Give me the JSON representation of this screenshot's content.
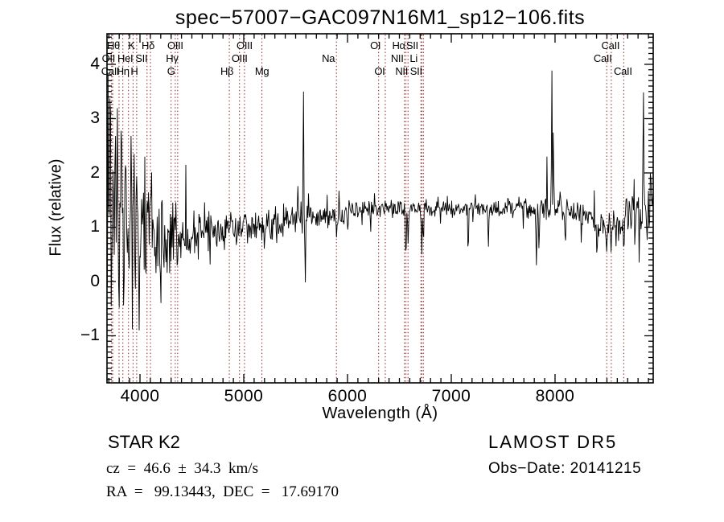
{
  "chart_data": {
    "type": "line",
    "title": "spec−57007−GAC097N16M1_sp12−106.fits",
    "xlabel": "Wavelength (Å)",
    "ylabel": "Flux (relative)",
    "x_range": [
      3682,
      8946
    ],
    "y_range": [
      -1.867,
      4.563
    ],
    "x_major_ticks": [
      4000,
      5000,
      6000,
      7000,
      8000
    ],
    "x_tick_labels": [
      "4000",
      "5000",
      "6000",
      "7000",
      "8000"
    ],
    "x_minor_step": 100,
    "y_major_ticks": [
      4,
      3,
      2,
      1,
      0,
      -1
    ],
    "y_tick_labels": [
      "4",
      "3",
      "2",
      "1",
      "0",
      "−1"
    ],
    "y_minor_step": 0.1,
    "grid": false,
    "legend": "none",
    "axis_color": "#000000",
    "spectrum_color": "#000000",
    "line_marker_color": "#8b2323",
    "sample_step": 6,
    "noise_seed": 57007,
    "continuum": [
      [
        3682,
        1.1
      ],
      [
        3800,
        1.0
      ],
      [
        3950,
        0.9
      ],
      [
        4100,
        0.8
      ],
      [
        4300,
        0.82
      ],
      [
        4500,
        0.9
      ],
      [
        4700,
        0.95
      ],
      [
        4861,
        0.97
      ],
      [
        5000,
        1.02
      ],
      [
        5200,
        1.05
      ],
      [
        5450,
        1.15
      ],
      [
        5700,
        1.2
      ],
      [
        5950,
        1.25
      ],
      [
        6200,
        1.33
      ],
      [
        6450,
        1.35
      ],
      [
        6563,
        1.32
      ],
      [
        6800,
        1.33
      ],
      [
        7100,
        1.36
      ],
      [
        7400,
        1.33
      ],
      [
        7700,
        1.36
      ],
      [
        8000,
        1.34
      ],
      [
        8250,
        1.22
      ],
      [
        8480,
        1.05
      ],
      [
        8600,
        1.1
      ],
      [
        8750,
        1.25
      ],
      [
        8946,
        1.4
      ]
    ],
    "noise_amp": [
      [
        3682,
        1.85
      ],
      [
        3800,
        1.5
      ],
      [
        3950,
        1.2
      ],
      [
        4100,
        1.0
      ],
      [
        4300,
        0.75
      ],
      [
        4500,
        0.55
      ],
      [
        4750,
        0.45
      ],
      [
        5000,
        0.4
      ],
      [
        5300,
        0.35
      ],
      [
        5600,
        0.32
      ],
      [
        5900,
        0.28
      ],
      [
        6200,
        0.24
      ],
      [
        6563,
        0.2
      ],
      [
        6900,
        0.16
      ],
      [
        7300,
        0.17
      ],
      [
        7700,
        0.22
      ],
      [
        8000,
        0.24
      ],
      [
        8300,
        0.3
      ],
      [
        8600,
        0.35
      ],
      [
        8946,
        0.5
      ]
    ],
    "features": [
      {
        "x": 5893,
        "type": "dip",
        "peak": 0.78,
        "w": 10
      },
      {
        "x": 6563,
        "type": "dip",
        "peak": 0.28,
        "w": 10
      },
      {
        "x": 6583,
        "type": "dip",
        "peak": 0.6,
        "w": 8
      },
      {
        "x": 6716,
        "type": "dip",
        "peak": 0.5,
        "w": 8
      },
      {
        "x": 6731,
        "type": "dip",
        "peak": 0.55,
        "w": 8
      },
      {
        "x": 7163,
        "type": "dip",
        "peak": 0.35,
        "w": 9
      },
      {
        "x": 7357,
        "type": "dip",
        "peak": 0.55,
        "w": 9
      },
      {
        "x": 7820,
        "type": "dip",
        "peak": 0.3,
        "w": 10
      },
      {
        "x": 7845,
        "type": "dip",
        "peak": 0.5,
        "w": 8
      },
      {
        "x": 8100,
        "type": "dip",
        "peak": 0.6,
        "w": 9
      },
      {
        "x": 8405,
        "type": "dip",
        "peak": 0.35,
        "w": 9
      },
      {
        "x": 8498,
        "type": "dip",
        "peak": 0.55,
        "w": 9
      },
      {
        "x": 8542,
        "type": "dip",
        "peak": 0.48,
        "w": 9
      },
      {
        "x": 8662,
        "type": "dip",
        "peak": 0.5,
        "w": 9
      },
      {
        "x": 8770,
        "type": "dip",
        "peak": 0.45,
        "w": 8
      },
      {
        "x": 8810,
        "type": "dip",
        "peak": 0.35,
        "w": 7
      },
      {
        "x": 3694,
        "type": "spike",
        "peak": 4.5,
        "w": 7
      },
      {
        "x": 3702,
        "type": "spike",
        "peak": -0.8,
        "w": 6
      },
      {
        "x": 3708,
        "type": "spike",
        "peak": 4.2,
        "w": 6
      },
      {
        "x": 3716,
        "type": "spike",
        "peak": 3.1,
        "w": 6
      },
      {
        "x": 3724,
        "type": "spike",
        "peak": -0.6,
        "w": 6
      },
      {
        "x": 3762,
        "type": "spike",
        "peak": 3.2,
        "w": 7
      },
      {
        "x": 3784,
        "type": "spike",
        "peak": 4.05,
        "w": 7
      },
      {
        "x": 3792,
        "type": "spike",
        "peak": -0.7,
        "w": 6
      },
      {
        "x": 3822,
        "type": "spike",
        "peak": 2.9,
        "w": 7
      },
      {
        "x": 3843,
        "type": "spike",
        "peak": -0.8,
        "w": 6
      },
      {
        "x": 3862,
        "type": "spike",
        "peak": 2.6,
        "w": 7
      },
      {
        "x": 3916,
        "type": "spike",
        "peak": 3.3,
        "w": 7
      },
      {
        "x": 3944,
        "type": "spike",
        "peak": 2.35,
        "w": 6
      },
      {
        "x": 3992,
        "type": "spike",
        "peak": -0.9,
        "w": 7
      },
      {
        "x": 4046,
        "type": "spike",
        "peak": 2.3,
        "w": 6
      },
      {
        "x": 4200,
        "type": "spike",
        "peak": -0.75,
        "w": 7
      },
      {
        "x": 4442,
        "type": "spike",
        "peak": 2.15,
        "w": 6
      },
      {
        "x": 5520,
        "type": "spike",
        "peak": 2.0,
        "w": 6
      },
      {
        "x": 5575,
        "type": "spike",
        "peak": 3.88,
        "w": 7
      },
      {
        "x": 5592,
        "type": "spike",
        "peak": -0.58,
        "w": 6
      },
      {
        "x": 7922,
        "type": "spike",
        "peak": 2.3,
        "w": 6
      },
      {
        "x": 7969,
        "type": "spike",
        "peak": 4.31,
        "w": 7
      },
      {
        "x": 7984,
        "type": "spike",
        "peak": 3.5,
        "w": 6
      },
      {
        "x": 8851,
        "type": "spike",
        "peak": 3.75,
        "w": 8
      },
      {
        "x": 8920,
        "type": "spike",
        "peak": 2.2,
        "w": 7
      }
    ],
    "spectral_lines": [
      {
        "label": "OII",
        "wavelength": 3727,
        "row": 2,
        "dx": -4
      },
      {
        "label": "CaII",
        "wavelength": 3737,
        "row": 3,
        "dx": -3
      },
      {
        "label": "Hθ",
        "wavelength": 3798,
        "row": 1,
        "dx": -7
      },
      {
        "label": "Hη",
        "wavelength": 3835,
        "row": 3,
        "dx": 0
      },
      {
        "label": "HeI",
        "wavelength": 3889,
        "row": 2,
        "dx": -4
      },
      {
        "label": "K",
        "wavelength": 3933,
        "row": 1,
        "dx": -2
      },
      {
        "label": "H",
        "wavelength": 3968,
        "row": 3,
        "dx": -3
      },
      {
        "label": "SII",
        "wavelength": 4068,
        "row": 2,
        "dx": -7
      },
      {
        "label": "Hδ",
        "wavelength": 4101,
        "row": 1,
        "dx": -3
      },
      {
        "label": "G",
        "wavelength": 4300,
        "row": 3,
        "dx": 0
      },
      {
        "label": "Hγ",
        "wavelength": 4340,
        "row": 2,
        "dx": -4
      },
      {
        "label": "OIII",
        "wavelength": 4363,
        "row": 1,
        "dx": -3
      },
      {
        "label": "Hβ",
        "wavelength": 4861,
        "row": 3,
        "dx": -3
      },
      {
        "label": "OIII",
        "wavelength": 4959,
        "row": 2,
        "dx": 0
      },
      {
        "label": "OIII",
        "wavelength": 5007,
        "row": 1,
        "dx": 0
      },
      {
        "label": "Mg",
        "wavelength": 5175,
        "row": 3,
        "dx": 0
      },
      {
        "label": "Na",
        "wavelength": 5893,
        "row": 2,
        "dx": -10
      },
      {
        "label": "OI",
        "wavelength": 6300,
        "row": 1,
        "dx": -4
      },
      {
        "label": "OI",
        "wavelength": 6364,
        "row": 3,
        "dx": -7
      },
      {
        "label": "NII",
        "wavelength": 6548,
        "row": 2,
        "dx": -9
      },
      {
        "label": "Hα",
        "wavelength": 6563,
        "row": 1,
        "dx": -9
      },
      {
        "label": "NII",
        "wavelength": 6583,
        "row": 3,
        "dx": -8
      },
      {
        "label": "Li",
        "wavelength": 6707,
        "row": 2,
        "dx": -9
      },
      {
        "label": "SII",
        "wavelength": 6716,
        "row": 1,
        "dx": -12
      },
      {
        "label": "SII",
        "wavelength": 6731,
        "row": 3,
        "dx": -9
      },
      {
        "label": "CaII",
        "wavelength": 8498,
        "row": 2,
        "dx": -5
      },
      {
        "label": "CaII",
        "wavelength": 8542,
        "row": 1,
        "dx": -1
      },
      {
        "label": "CaII",
        "wavelength": 8662,
        "row": 3,
        "dx": -1
      }
    ]
  },
  "footer": {
    "class_label": "STAR",
    "subclass": "K2",
    "survey": "LAMOST DR5",
    "cz_line": "cz  =  46.6  ±  34.3  km/s",
    "obs_date_line": "Obs−Date: 20141215",
    "ra_dec_line": "RA  =   99.13443,  DEC  =   17.69170"
  }
}
